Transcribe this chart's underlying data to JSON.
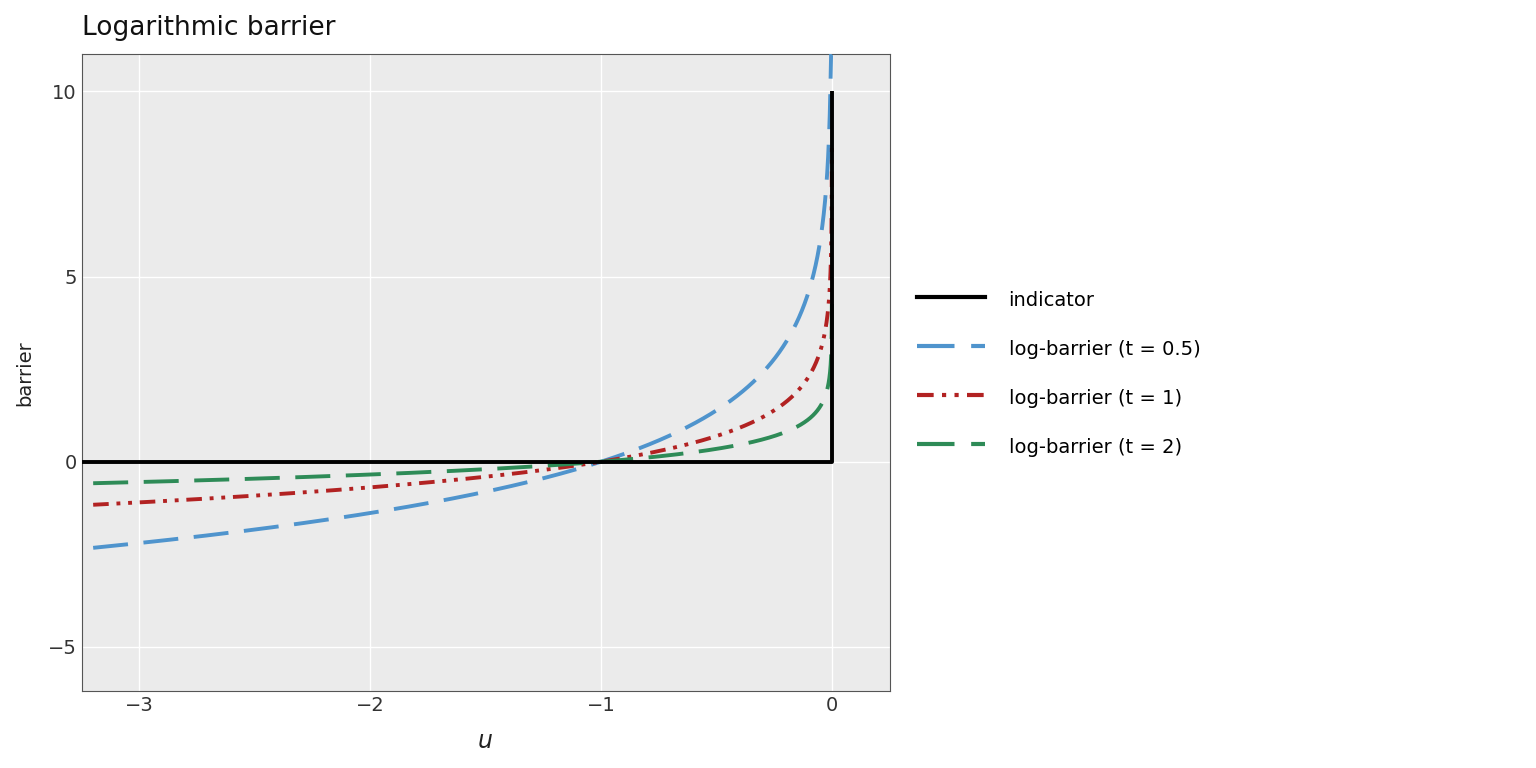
{
  "title": "Logarithmic barrier",
  "xlabel": "u",
  "ylabel": "barrier",
  "xlim": [
    -3.25,
    0.25
  ],
  "ylim": [
    -6.2,
    11.0
  ],
  "yticks": [
    -5,
    0,
    5,
    10
  ],
  "xticks": [
    -3,
    -2,
    -1,
    0
  ],
  "plot_bg_color": "#ebebeb",
  "fig_bg_color": "#ffffff",
  "grid_color": "#ffffff",
  "t_values": [
    0.5,
    1.0,
    2.0
  ],
  "colors": {
    "indicator": "#000000",
    "t0.5": "#4f94cd",
    "t1": "#b22222",
    "t2": "#2e8b57"
  },
  "legend_labels": {
    "indicator": "indicator",
    "t0.5": "log-barrier (t = 0.5)",
    "t1": "log-barrier (t = 1)",
    "t2": "log-barrier (t = 2)"
  }
}
